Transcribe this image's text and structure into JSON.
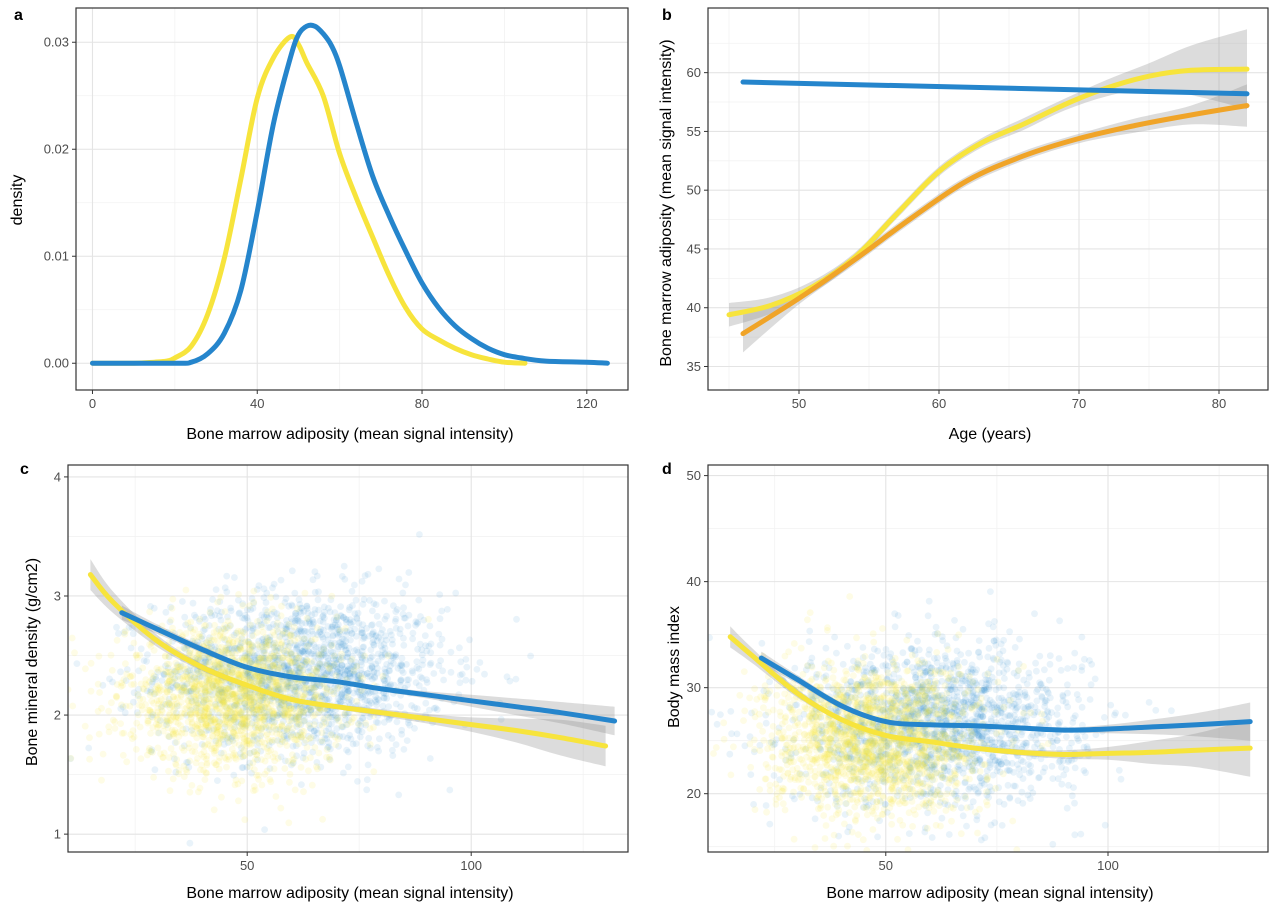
{
  "colors": {
    "yellow": "#f7e43c",
    "blue": "#2585cc",
    "orange": "#f0a428",
    "ribbon": "#8c8c8c"
  },
  "panels": [
    {
      "letter": "a",
      "xlabel": "Bone marrow adiposity (mean signal intensity)",
      "ylabel": "density"
    },
    {
      "letter": "b",
      "xlabel": "Age (years)",
      "ylabel": "Bone marrow adiposity (mean signal intensity)"
    },
    {
      "letter": "c",
      "xlabel": "Bone marrow adiposity (mean signal intensity)",
      "ylabel": "Bone mineral density (g/cm2)"
    },
    {
      "letter": "d",
      "xlabel": "Bone marrow adiposity (mean signal intensity)",
      "ylabel": "Body mass index"
    }
  ],
  "chart_data": [
    {
      "type": "line",
      "panel": "a",
      "xlim": [
        -4,
        130
      ],
      "ylim": [
        -0.0025,
        0.0332
      ],
      "xticks": [
        0,
        40,
        80,
        120
      ],
      "xtick_labels": [
        "0",
        "40",
        "80",
        "120"
      ],
      "yticks": [
        0,
        0.01,
        0.02,
        0.03
      ],
      "ytick_labels": [
        "0.00",
        "0.01",
        "0.02",
        "0.03"
      ],
      "grid": true,
      "series": [
        {
          "color": "yellow",
          "x": [
            0,
            10,
            15,
            18,
            20,
            24,
            28,
            32,
            36,
            40,
            44,
            48,
            50,
            52,
            56,
            60,
            64,
            68,
            72,
            76,
            80,
            84,
            88,
            92,
            96,
            100,
            105
          ],
          "y": [
            0,
            0,
            0.0001,
            0.0002,
            0.0005,
            0.0016,
            0.0046,
            0.0098,
            0.0172,
            0.0248,
            0.0286,
            0.0305,
            0.0298,
            0.0281,
            0.025,
            0.0196,
            0.0155,
            0.0118,
            0.0082,
            0.0052,
            0.0032,
            0.0022,
            0.0014,
            0.0008,
            0.0004,
            0.0001,
            0
          ]
        },
        {
          "color": "blue",
          "x": [
            0,
            20,
            24,
            28,
            32,
            36,
            40,
            44,
            48,
            50,
            52,
            54,
            56,
            58,
            60,
            64,
            68,
            72,
            76,
            80,
            84,
            88,
            92,
            96,
            100,
            104,
            110,
            120,
            125
          ],
          "y": [
            0,
            0,
            0.0001,
            0.0009,
            0.0028,
            0.0068,
            0.0142,
            0.0225,
            0.0285,
            0.0307,
            0.0315,
            0.0315,
            0.0308,
            0.0297,
            0.0278,
            0.0225,
            0.0175,
            0.0138,
            0.0105,
            0.0075,
            0.0052,
            0.0035,
            0.0023,
            0.0014,
            0.0008,
            0.0005,
            0.0002,
            0.0001,
            0
          ]
        }
      ]
    },
    {
      "type": "line",
      "panel": "b",
      "xlim": [
        43.5,
        83.5
      ],
      "ylim": [
        33,
        65.5
      ],
      "xticks": [
        50,
        60,
        70,
        80
      ],
      "xtick_labels": [
        "50",
        "60",
        "70",
        "80"
      ],
      "yticks": [
        35,
        40,
        45,
        50,
        55,
        60
      ],
      "ytick_labels": [
        "35",
        "40",
        "45",
        "50",
        "55",
        "60"
      ],
      "grid": true,
      "series": [
        {
          "color": "yellow",
          "x": [
            45,
            48,
            51,
            54,
            57,
            60,
            63,
            66,
            69,
            72,
            75,
            78,
            82
          ],
          "y": [
            39.4,
            40.2,
            41.8,
            44.3,
            48,
            51.6,
            54,
            55.6,
            57.3,
            58.7,
            59.7,
            60.2,
            60.3
          ],
          "band_low": [
            38.4,
            39.5,
            41.3,
            43.9,
            47.6,
            51.2,
            53.6,
            55.1,
            56.8,
            58,
            58.6,
            58.1,
            56.9
          ],
          "band_high": [
            40.4,
            40.9,
            42.3,
            44.7,
            48.4,
            52,
            54.4,
            56.1,
            57.8,
            59.4,
            60.8,
            62.3,
            63.7
          ]
        },
        {
          "color": "orange",
          "x": [
            46,
            50,
            54,
            58,
            62,
            66,
            70,
            74,
            78,
            82
          ],
          "y": [
            37.8,
            40.8,
            44.1,
            47.6,
            50.8,
            52.9,
            54.4,
            55.5,
            56.4,
            57.2
          ],
          "band_low": [
            36.2,
            40.3,
            43.7,
            47.2,
            50.4,
            52.5,
            54,
            54.9,
            55.6,
            55.4
          ],
          "band_high": [
            39.4,
            41.3,
            44.5,
            48,
            51.2,
            53.3,
            54.8,
            56.1,
            57.2,
            59
          ]
        },
        {
          "color": "blue",
          "x": [
            46,
            82
          ],
          "y": [
            59.2,
            58.2
          ]
        }
      ]
    },
    {
      "type": "scatter",
      "panel": "c",
      "xlim": [
        10,
        135
      ],
      "ylim": [
        0.85,
        4.1
      ],
      "xticks": [
        50,
        100
      ],
      "xtick_labels": [
        "50",
        "100"
      ],
      "yticks": [
        1,
        2,
        3,
        4
      ],
      "ytick_labels": [
        "1",
        "2",
        "3",
        "4"
      ],
      "grid": true,
      "scatter_cloud": [
        {
          "color": "blue",
          "cx": 62,
          "cy": 2.35,
          "sx": 16,
          "sy": 0.34,
          "n": 1700,
          "opacity": 0.1
        },
        {
          "color": "yellow",
          "cx": 47,
          "cy": 2.15,
          "sx": 12,
          "sy": 0.3,
          "n": 1700,
          "opacity": 0.13
        }
      ],
      "series": [
        {
          "color": "yellow",
          "x": [
            15,
            20,
            30,
            40,
            50,
            60,
            70,
            80,
            90,
            100,
            110,
            120,
            130
          ],
          "y": [
            3.18,
            2.95,
            2.62,
            2.4,
            2.25,
            2.13,
            2.07,
            2.02,
            1.97,
            1.92,
            1.87,
            1.81,
            1.74
          ],
          "band_low": [
            3.05,
            2.86,
            2.57,
            2.37,
            2.23,
            2.11,
            2.05,
            1.99,
            1.93,
            1.86,
            1.77,
            1.66,
            1.57
          ],
          "band_high": [
            3.31,
            3.04,
            2.67,
            2.43,
            2.27,
            2.15,
            2.09,
            2.05,
            2.01,
            1.98,
            1.97,
            1.96,
            1.91
          ]
        },
        {
          "color": "blue",
          "x": [
            22,
            30,
            40,
            50,
            60,
            70,
            80,
            90,
            100,
            110,
            120,
            132
          ],
          "y": [
            2.86,
            2.72,
            2.55,
            2.4,
            2.32,
            2.28,
            2.22,
            2.17,
            2.12,
            2.07,
            2.02,
            1.95
          ],
          "band_low": [
            2.8,
            2.68,
            2.52,
            2.38,
            2.3,
            2.26,
            2.2,
            2.14,
            2.07,
            2,
            1.93,
            1.83
          ],
          "band_high": [
            2.92,
            2.76,
            2.58,
            2.42,
            2.34,
            2.3,
            2.24,
            2.2,
            2.17,
            2.14,
            2.11,
            2.07
          ]
        }
      ]
    },
    {
      "type": "scatter",
      "panel": "d",
      "xlim": [
        10,
        136
      ],
      "ylim": [
        14.5,
        51
      ],
      "xticks": [
        50,
        100
      ],
      "xtick_labels": [
        "50",
        "100"
      ],
      "yticks": [
        20,
        30,
        40,
        50
      ],
      "ytick_labels": [
        "20",
        "30",
        "40",
        "50"
      ],
      "grid": true,
      "scatter_cloud": [
        {
          "color": "blue",
          "cx": 62,
          "cy": 26.5,
          "sx": 16,
          "sy": 3.8,
          "n": 1700,
          "opacity": 0.1
        },
        {
          "color": "yellow",
          "cx": 47,
          "cy": 25,
          "sx": 12,
          "sy": 3.6,
          "n": 1700,
          "opacity": 0.13
        }
      ],
      "series": [
        {
          "color": "yellow",
          "x": [
            15,
            20,
            30,
            40,
            50,
            60,
            70,
            80,
            90,
            100,
            110,
            120,
            132
          ],
          "y": [
            34.8,
            33,
            29.5,
            27,
            25.5,
            24.9,
            24.3,
            23.9,
            23.7,
            23.8,
            23.9,
            24.1,
            24.3
          ],
          "band_low": [
            33.8,
            32.3,
            29.1,
            26.8,
            25.3,
            24.7,
            24.1,
            23.6,
            23.3,
            23.2,
            22.8,
            22.5,
            21.6
          ],
          "band_high": [
            35.8,
            33.7,
            29.9,
            27.2,
            25.7,
            25.1,
            24.5,
            24.2,
            24.1,
            24.4,
            25,
            25.7,
            27
          ]
        },
        {
          "color": "blue",
          "x": [
            22,
            30,
            40,
            50,
            60,
            70,
            80,
            90,
            100,
            110,
            120,
            132
          ],
          "y": [
            32.8,
            30.8,
            28.3,
            26.8,
            26.5,
            26.4,
            26.2,
            26,
            26.1,
            26.3,
            26.5,
            26.8
          ],
          "band_low": [
            32.2,
            30.4,
            28,
            26.6,
            26.3,
            26.2,
            26,
            25.8,
            25.7,
            25.6,
            25.4,
            25
          ],
          "band_high": [
            33.4,
            31.2,
            28.6,
            27,
            26.7,
            26.6,
            26.4,
            26.2,
            26.5,
            27,
            27.6,
            28.6
          ]
        }
      ]
    }
  ]
}
